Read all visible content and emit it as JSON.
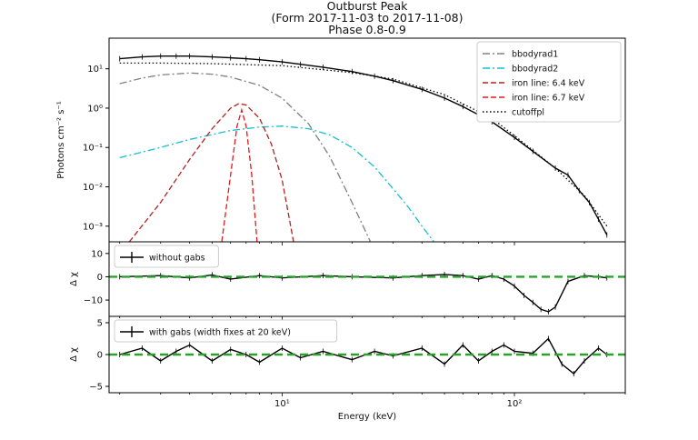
{
  "titles": [
    "Outburst Peak",
    "(Form 2017-11-03 to 2017-11-08)",
    "Phase 0.8-0.9"
  ],
  "chart_data": [
    {
      "type": "line",
      "panel": "spectrum",
      "xscale": "log",
      "yscale": "log",
      "xlim": [
        1.8,
        300
      ],
      "ylim": [
        0.0004,
        60
      ],
      "ylabel": "Photons cm⁻² s⁻¹",
      "yticks": [
        {
          "v": 0.001,
          "l": "10⁻³"
        },
        {
          "v": 0.01,
          "l": "10⁻²"
        },
        {
          "v": 0.1,
          "l": "10⁻¹"
        },
        {
          "v": 1,
          "l": "10⁰"
        },
        {
          "v": 10,
          "l": "10¹"
        }
      ],
      "legend_position": "top-right",
      "series": [
        {
          "name": "data",
          "style": "step",
          "color": "#000000",
          "legend": false,
          "x": [
            2,
            2.5,
            3,
            3.5,
            4,
            5,
            6,
            7,
            8,
            10,
            12,
            15,
            20,
            25,
            30,
            40,
            50,
            60,
            80,
            100,
            120,
            150,
            170,
            190,
            210,
            230,
            250
          ],
          "y": [
            18,
            20,
            21,
            21,
            21,
            20,
            19,
            18,
            17,
            15,
            13,
            11,
            8.5,
            6.5,
            5,
            3,
            1.8,
            1.1,
            0.45,
            0.18,
            0.08,
            0.03,
            0.02,
            0.008,
            0.004,
            0.0015,
            0.0006
          ]
        },
        {
          "name": "bbodyrad1",
          "style": "dashdot",
          "color": "#808080",
          "legend": true,
          "x": [
            2,
            2.5,
            3,
            4,
            5,
            6,
            8,
            10,
            13,
            16,
            20,
            24
          ],
          "y": [
            4.2,
            5.8,
            7,
            7.8,
            7.3,
            6.2,
            3.8,
            1.8,
            0.4,
            0.06,
            0.004,
            0.0004
          ]
        },
        {
          "name": "bbodyrad2",
          "style": "dashdot",
          "color": "#17becf",
          "legend": true,
          "x": [
            2,
            3,
            4,
            6,
            8,
            10,
            13,
            16,
            20,
            25,
            30,
            35,
            40,
            45
          ],
          "y": [
            0.055,
            0.1,
            0.16,
            0.27,
            0.33,
            0.35,
            0.3,
            0.21,
            0.1,
            0.032,
            0.009,
            0.003,
            0.001,
            0.0004
          ]
        },
        {
          "name": "iron line: 6.4 keV",
          "style": "dashed",
          "color": "#b22222",
          "legend": true,
          "x": [
            2.2,
            3,
            4,
            5,
            6,
            6.5,
            7,
            8,
            9,
            10,
            11.2
          ],
          "y": [
            0.0004,
            0.004,
            0.05,
            0.3,
            1.0,
            1.3,
            1.2,
            0.55,
            0.12,
            0.015,
            0.0004
          ]
        },
        {
          "name": "iron line: 6.7 keV",
          "style": "dashed",
          "color": "#e41a1c",
          "legend": true,
          "x": [
            5.5,
            6.0,
            6.4,
            6.7,
            7.0,
            7.4,
            7.8
          ],
          "y": [
            0.0004,
            0.02,
            0.35,
            0.9,
            0.35,
            0.02,
            0.0004
          ]
        },
        {
          "name": "cutoffpl",
          "style": "dotted",
          "color": "#000000",
          "legend": true,
          "x": [
            2,
            3,
            5,
            8,
            10,
            20,
            30,
            50,
            80,
            100,
            150,
            200,
            250
          ],
          "y": [
            14,
            14,
            13.5,
            12.5,
            12,
            8,
            5.5,
            2.2,
            0.55,
            0.2,
            0.03,
            0.006,
            0.001
          ]
        }
      ]
    },
    {
      "type": "line",
      "panel": "residuals-without-gabs",
      "xscale": "log",
      "xlim": [
        1.8,
        300
      ],
      "ylim": [
        -17,
        15
      ],
      "ylabel": "Δ χ",
      "yticks": [
        {
          "v": -10,
          "l": "−10"
        },
        {
          "v": 0,
          "l": "0"
        },
        {
          "v": 10,
          "l": "10"
        }
      ],
      "legend_position": "top-left",
      "series": [
        {
          "name": "without gabs",
          "style": "step",
          "color": "#000000",
          "legend": true,
          "x": [
            2,
            3,
            4,
            5,
            6,
            8,
            10,
            15,
            20,
            30,
            40,
            50,
            60,
            70,
            80,
            90,
            100,
            110,
            120,
            130,
            140,
            150,
            170,
            200,
            230,
            250
          ],
          "y": [
            0,
            0.5,
            -0.5,
            0.8,
            -1,
            0.5,
            -0.5,
            0.5,
            0,
            -0.5,
            0.5,
            1,
            0.5,
            -1,
            0.5,
            -1,
            -4,
            -8,
            -11,
            -14,
            -15,
            -13,
            -2,
            0.5,
            0,
            -0.5
          ]
        },
        {
          "name": "zero",
          "style": "dashed",
          "color": "#2ca02c",
          "legend": false,
          "x": [
            1.8,
            300
          ],
          "y": [
            0,
            0
          ]
        }
      ]
    },
    {
      "type": "line",
      "panel": "residuals-with-gabs",
      "xscale": "log",
      "xlim": [
        1.8,
        300
      ],
      "ylim": [
        -6,
        6
      ],
      "xlabel": "Energy (keV)",
      "ylabel": "Δ χ",
      "yticks": [
        {
          "v": -5,
          "l": "−5"
        },
        {
          "v": 0,
          "l": "0"
        },
        {
          "v": 5,
          "l": "5"
        }
      ],
      "xticks": [
        {
          "v": 10,
          "l": "10¹"
        },
        {
          "v": 100,
          "l": "10²"
        }
      ],
      "legend_position": "top-left",
      "series": [
        {
          "name": "with gabs (width fixes at 20 keV)",
          "style": "step",
          "color": "#000000",
          "legend": true,
          "x": [
            2,
            2.5,
            3,
            3.5,
            4,
            5,
            6,
            7,
            8,
            10,
            12,
            15,
            20,
            25,
            30,
            40,
            50,
            60,
            70,
            80,
            90,
            100,
            120,
            140,
            160,
            180,
            200,
            230,
            250
          ],
          "y": [
            0,
            1,
            -1,
            0.5,
            1.5,
            -1,
            0.8,
            0,
            -1.2,
            1,
            -0.5,
            0.5,
            -0.8,
            0.5,
            -0.2,
            1,
            -1.5,
            1.5,
            -1,
            0.5,
            1.5,
            0.5,
            0.2,
            2.5,
            -1.5,
            -3,
            -1,
            1,
            0
          ]
        },
        {
          "name": "zero",
          "style": "dashed",
          "color": "#2ca02c",
          "legend": false,
          "x": [
            1.8,
            300
          ],
          "y": [
            0,
            0
          ]
        }
      ]
    }
  ]
}
